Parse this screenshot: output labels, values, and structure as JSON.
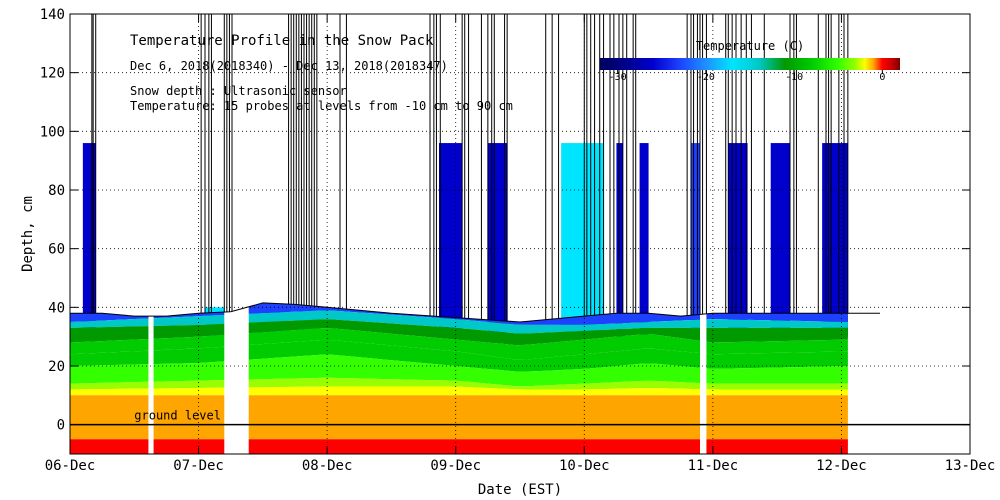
{
  "chart_data": {
    "type": "heatmap",
    "title": "Temperature Profile in the Snow Pack",
    "subtitle": "Dec  6, 2018(2018340) - Dec 13, 2018(2018347)",
    "note1": "Snow depth : Ultrasonic sensor",
    "note2": "Temperature: 15 probes at levels from -10 cm to 90 cm",
    "xlabel": "Date (EST)",
    "ylabel": "Depth, cm",
    "x_ticks": [
      "06-Dec",
      "07-Dec",
      "08-Dec",
      "09-Dec",
      "10-Dec",
      "11-Dec",
      "12-Dec",
      "13-Dec"
    ],
    "x_range_days": [
      0,
      7
    ],
    "ylim": [
      -10,
      140
    ],
    "y_ticks": [
      0,
      20,
      40,
      60,
      80,
      100,
      120,
      140
    ],
    "grid": true,
    "ground_label": "ground level",
    "colorbar": {
      "title": "Temperature (C)",
      "tick_labels": [
        "-30",
        "-20",
        "-10",
        "0"
      ],
      "tick_values": [
        -30,
        -20,
        -10,
        0
      ],
      "range": [
        -32,
        2
      ],
      "stops": [
        {
          "t": -32,
          "color": "#000060"
        },
        {
          "t": -29,
          "color": "#00008b"
        },
        {
          "t": -26,
          "color": "#0000cd"
        },
        {
          "t": -23,
          "color": "#1e40ff"
        },
        {
          "t": -20,
          "color": "#1e90ff"
        },
        {
          "t": -17,
          "color": "#00e5ff"
        },
        {
          "t": -14,
          "color": "#00c8c8"
        },
        {
          "t": -11,
          "color": "#009900"
        },
        {
          "t": -8,
          "color": "#00cc00"
        },
        {
          "t": -5,
          "color": "#33ff00"
        },
        {
          "t": -3,
          "color": "#99ff00"
        },
        {
          "t": -2,
          "color": "#ffff00"
        },
        {
          "t": -1,
          "color": "#ffa500"
        },
        {
          "t": 0,
          "color": "#ff0000"
        },
        {
          "t": 1,
          "color": "#cc0000"
        },
        {
          "t": 2,
          "color": "#7a0000"
        }
      ]
    },
    "data_extent_days": [
      0,
      6.05
    ],
    "gaps_days": [
      [
        0.61,
        0.65
      ],
      [
        1.2,
        1.39
      ],
      [
        4.9,
        4.95
      ]
    ],
    "snow_depth_cm": {
      "x_days": [
        0,
        0.25,
        0.5,
        0.75,
        1.0,
        1.25,
        1.5,
        1.75,
        2.0,
        2.5,
        3.0,
        3.5,
        4.0,
        4.25,
        4.5,
        4.75,
        5.0,
        5.25,
        5.5,
        5.75,
        6.05,
        6.3
      ],
      "y": [
        38,
        38,
        37,
        37,
        38,
        38.5,
        41.5,
        41,
        40,
        38,
        36.5,
        35,
        37,
        38,
        38,
        37,
        38,
        38,
        38,
        38,
        38,
        38
      ]
    },
    "isotherm_levels_cm": [
      {
        "temp": -15,
        "x_days": [
          0,
          1,
          2,
          3,
          3.5,
          4,
          4.5,
          5,
          6.05
        ],
        "y": [
          35,
          37,
          39,
          36,
          34,
          34,
          35,
          36,
          35
        ]
      },
      {
        "temp": -12,
        "x_days": [
          0,
          1,
          2,
          3,
          3.5,
          4,
          4.5,
          5,
          6.05
        ],
        "y": [
          33,
          34,
          36,
          33,
          31,
          32,
          33,
          33,
          33
        ]
      },
      {
        "temp": -9,
        "x_days": [
          0,
          1,
          2,
          3,
          3.5,
          4,
          4.5,
          5,
          6.05
        ],
        "y": [
          28,
          30,
          33,
          29,
          27,
          29,
          31,
          28,
          29
        ]
      },
      {
        "temp": -7,
        "x_days": [
          0,
          1,
          2,
          3,
          3.5,
          4,
          4.5,
          5,
          6.05
        ],
        "y": [
          24,
          26,
          29,
          25,
          22,
          24,
          26,
          24,
          25
        ]
      },
      {
        "temp": -5,
        "x_days": [
          0,
          1,
          2,
          3,
          3.5,
          4,
          4.5,
          5,
          6.05
        ],
        "y": [
          20,
          21,
          24,
          20,
          18,
          19,
          21,
          19,
          20
        ]
      },
      {
        "temp": -3,
        "x_days": [
          0,
          1,
          2,
          3,
          3.5,
          4,
          4.5,
          5,
          6.05
        ],
        "y": [
          14,
          15,
          16,
          15,
          13,
          14,
          15,
          14,
          14
        ]
      },
      {
        "temp": -2,
        "x_days": [
          0,
          1,
          2,
          3,
          3.5,
          4,
          4.5,
          5,
          6.05
        ],
        "y": [
          12,
          12.5,
          13,
          13,
          12,
          12,
          12.5,
          12,
          12
        ]
      },
      {
        "temp": -1,
        "x_days": [
          0,
          6.05
        ],
        "y": [
          10,
          10
        ]
      },
      {
        "temp": 0,
        "x_days": [
          0,
          6.05
        ],
        "y": [
          -5,
          -5
        ]
      }
    ],
    "cold_air_blocks": [
      {
        "x0": 0.1,
        "x1": 0.2,
        "top": 96,
        "color": "#0000cd"
      },
      {
        "x0": 2.87,
        "x1": 3.05,
        "top": 96,
        "color": "#0000cd"
      },
      {
        "x0": 3.25,
        "x1": 3.4,
        "top": 96,
        "color": "#0000cd"
      },
      {
        "x0": 3.82,
        "x1": 4.15,
        "top": 96,
        "color": "#00e5ff"
      },
      {
        "x0": 4.25,
        "x1": 4.3,
        "top": 96,
        "color": "#0000cd"
      },
      {
        "x0": 4.43,
        "x1": 4.5,
        "top": 96,
        "color": "#0000cd"
      },
      {
        "x0": 4.83,
        "x1": 4.93,
        "top": 96,
        "color": "#1e40ff"
      },
      {
        "x0": 5.12,
        "x1": 5.27,
        "top": 96,
        "color": "#0000cd"
      },
      {
        "x0": 5.45,
        "x1": 5.6,
        "top": 96,
        "color": "#0000cd"
      },
      {
        "x0": 5.85,
        "x1": 6.05,
        "top": 96,
        "color": "#0000cd"
      },
      {
        "x0": 1.05,
        "x1": 1.2,
        "top": 40,
        "color": "#00e5ff"
      },
      {
        "x0": 1.4,
        "x1": 1.7,
        "top": 40,
        "color": "#00e5ff"
      },
      {
        "x0": 1.78,
        "x1": 1.92,
        "top": 40,
        "color": "#00e5ff"
      }
    ],
    "sensor_spikes_days": [
      0.17,
      0.18,
      0.2,
      1.02,
      1.05,
      1.08,
      1.1,
      1.2,
      1.22,
      1.24,
      1.26,
      1.7,
      1.72,
      1.74,
      1.76,
      1.78,
      1.8,
      1.82,
      1.84,
      1.86,
      1.88,
      1.9,
      1.92,
      2.1,
      2.15,
      2.8,
      2.83,
      2.85,
      2.88,
      3.05,
      3.07,
      3.1,
      3.2,
      3.25,
      3.28,
      3.3,
      3.38,
      3.4,
      3.7,
      3.75,
      3.8,
      4.0,
      4.02,
      4.05,
      4.08,
      4.12,
      4.15,
      4.2,
      4.23,
      4.27,
      4.3,
      4.33,
      4.38,
      4.4,
      4.8,
      4.83,
      4.85,
      4.88,
      4.9,
      4.92,
      4.95,
      5.1,
      5.12,
      5.15,
      5.18,
      5.22,
      5.26,
      5.3,
      5.4,
      5.6,
      5.63,
      5.65,
      5.82,
      5.88,
      5.9,
      5.92,
      5.98,
      6.02,
      6.05
    ]
  }
}
